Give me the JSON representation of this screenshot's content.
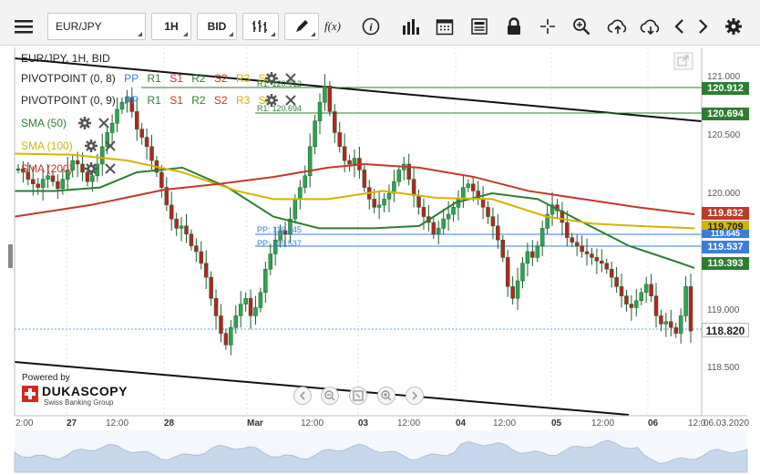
{
  "toolbar": {
    "symbol": "EUR/JPY",
    "timeframe": "1H",
    "price_side": "BID",
    "fx_label": "f(x)",
    "icons": [
      "menu-icon",
      "bars-chart-type-icon",
      "pencil-icon",
      "function-icon",
      "info-icon",
      "volume-icon",
      "calendar-icon",
      "news-icon",
      "lock-icon",
      "crosshair-icon",
      "zoom-icon",
      "cloud-upload-icon",
      "cloud-download-icon",
      "arrow-left-icon",
      "arrow-right-icon",
      "gear-icon"
    ]
  },
  "legend": {
    "title": "EUR/JPY, 1H, BID",
    "pivot1": {
      "name": "PIVOTPOINT (0, 8)",
      "levels": [
        "PP",
        "R1",
        "S1",
        "R2",
        "S2",
        "R3",
        "S3"
      ]
    },
    "pivot2": {
      "name": "PIVOTPOINT (0, 9)",
      "levels": [
        "PP",
        "R1",
        "S1",
        "R2",
        "S2",
        "R3",
        "S3"
      ]
    },
    "sma50": "SMA (50)",
    "sma100": "SMA (100)",
    "sma200": "SMA (200)"
  },
  "level_labels": {
    "r1_old": "R1: 120.694",
    "r1_old_dup": "R1: 120.912",
    "pp_old": "PP: 119.645",
    "pp_new": "PP: 119.537"
  },
  "price_axis": {
    "ticks": [
      "121.000",
      "120.500",
      "120.000",
      "119.500",
      "119.000",
      "118.500"
    ],
    "labels": [
      {
        "value": "120.912",
        "bg": "#2e7d32",
        "color": "#ffffff"
      },
      {
        "value": "120.694",
        "bg": "#2e7d32",
        "color": "#ffffff"
      },
      {
        "value": "119.832",
        "bg": "#c0392b",
        "color": "#ffffff"
      },
      {
        "value": "119.709",
        "bg": "#d4b400",
        "color": "#222222"
      },
      {
        "value": "119.645",
        "bg": "#3b7dd8",
        "color": "#ffffff"
      },
      {
        "value": "119.537",
        "bg": "#3b7dd8",
        "color": "#ffffff"
      },
      {
        "value": "119.393",
        "bg": "#2e7d32",
        "color": "#ffffff"
      },
      {
        "value": "118.820",
        "bg": "#ffffff",
        "color": "#222222"
      }
    ]
  },
  "time_axis": {
    "labels": [
      "2:00",
      "27",
      "12:00",
      "28",
      "Mar",
      "12:00",
      "03",
      "12:00",
      "04",
      "12:00",
      "05",
      "12:00",
      "06",
      "12:0",
      "06.03.2020"
    ]
  },
  "branding": {
    "powered_by": "Powered by",
    "brand": "DUKASCOPY",
    "tagline": "Swiss Banking Group"
  },
  "colors": {
    "sma50": "#2e7d32",
    "sma100": "#d4b400",
    "sma200": "#c0392b",
    "pivot_blue": "#3b7dd8",
    "candle": "#1e8e3e",
    "bear": "#c0392b"
  }
}
